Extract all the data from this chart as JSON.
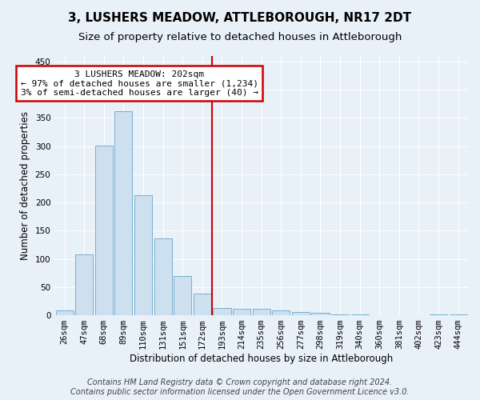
{
  "title": "3, LUSHERS MEADOW, ATTLEBOROUGH, NR17 2DT",
  "subtitle": "Size of property relative to detached houses in Attleborough",
  "xlabel": "Distribution of detached houses by size in Attleborough",
  "ylabel": "Number of detached properties",
  "bar_color": "#cce0f0",
  "bar_edge_color": "#7aafd0",
  "vline_color": "#cc0000",
  "vline_index": 8,
  "annotation_line1": "3 LUSHERS MEADOW: 202sqm",
  "annotation_line2": "← 97% of detached houses are smaller (1,234)",
  "annotation_line3": "3% of semi-detached houses are larger (40) →",
  "annotation_box_color": "#ffffff",
  "annotation_box_edge": "#cc0000",
  "categories": [
    "26sqm",
    "47sqm",
    "68sqm",
    "89sqm",
    "110sqm",
    "131sqm",
    "151sqm",
    "172sqm",
    "193sqm",
    "214sqm",
    "235sqm",
    "256sqm",
    "277sqm",
    "298sqm",
    "319sqm",
    "340sqm",
    "360sqm",
    "381sqm",
    "402sqm",
    "423sqm",
    "444sqm"
  ],
  "values": [
    8,
    108,
    301,
    362,
    213,
    136,
    70,
    38,
    13,
    12,
    11,
    8,
    6,
    5,
    2,
    1,
    0,
    0,
    0,
    1,
    2
  ],
  "ylim": [
    0,
    460
  ],
  "yticks": [
    0,
    50,
    100,
    150,
    200,
    250,
    300,
    350,
    400,
    450
  ],
  "background_color": "#e8f0f8",
  "plot_bg_color": "#e8f0f8",
  "footer_line1": "Contains HM Land Registry data © Crown copyright and database right 2024.",
  "footer_line2": "Contains public sector information licensed under the Open Government Licence v3.0.",
  "title_fontsize": 11,
  "subtitle_fontsize": 9.5,
  "axis_label_fontsize": 8.5,
  "tick_fontsize": 7.5,
  "footer_fontsize": 7
}
